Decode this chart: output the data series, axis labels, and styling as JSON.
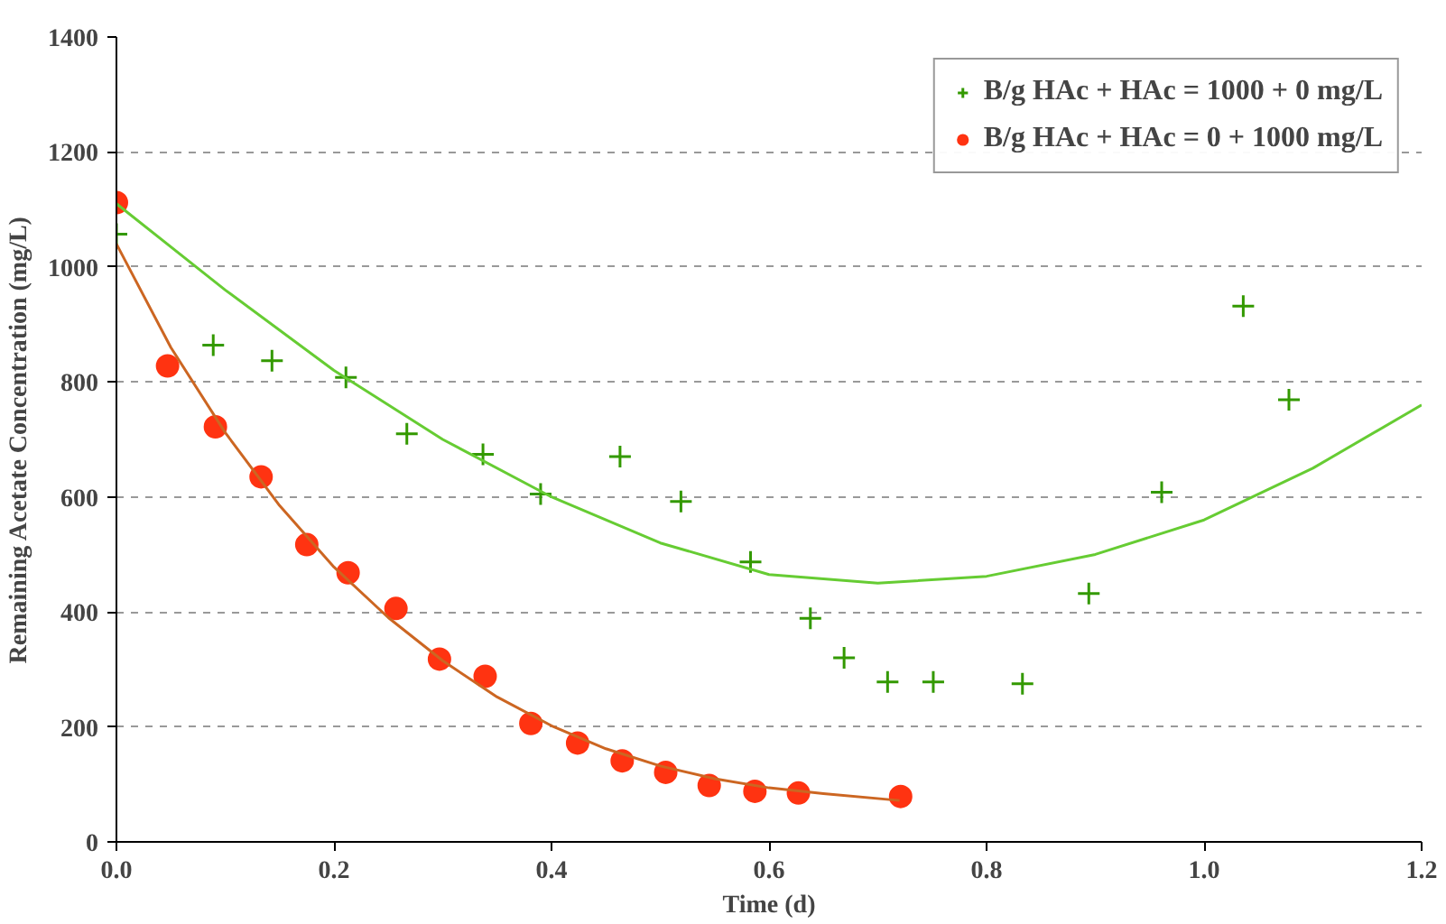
{
  "chart_data": {
    "type": "scatter",
    "xlabel": "Time (d)",
    "ylabel": "Remaining Acetate Concentration (mg/L)",
    "xlim": [
      0,
      1.2
    ],
    "xticks": [
      {
        "value": 0,
        "label": "0.0"
      },
      {
        "value": 0.2,
        "label": "0.2"
      },
      {
        "value": 0.4,
        "label": "0.4"
      },
      {
        "value": 0.6,
        "label": "0.6"
      },
      {
        "value": 0.8,
        "label": "0.8"
      },
      {
        "value": 1.0,
        "label": "1.0"
      },
      {
        "value": 1.2,
        "label": "1.2"
      }
    ],
    "ylim": [
      0,
      1400
    ],
    "yticks": [
      0,
      200,
      400,
      600,
      800,
      1000,
      1200,
      1400
    ],
    "grid": "y",
    "legend": "top right",
    "series": [
      {
        "name": "B/g HAc + HAc = 1000 + 0 mg/L",
        "marker": "cross",
        "color": "#339900",
        "x": [
          0,
          0.089,
          0.143,
          0.211,
          0.267,
          0.337,
          0.39,
          0.463,
          0.519,
          0.583,
          0.638,
          0.669,
          0.709,
          0.751,
          0.833,
          0.894,
          0.961,
          1.036,
          1.078
        ],
        "values": [
          1057,
          864,
          837,
          808,
          710,
          674,
          605,
          670,
          592,
          487,
          389,
          320,
          278,
          278,
          275,
          432,
          608,
          932,
          769
        ]
      },
      {
        "name": "B/g HAc + HAc = 0 + 1000 mg/L",
        "marker": "circle",
        "color": "#ff3311",
        "x": [
          0,
          0.047,
          0.091,
          0.133,
          0.175,
          0.213,
          0.257,
          0.297,
          0.339,
          0.381,
          0.424,
          0.465,
          0.505,
          0.545,
          0.587,
          0.627,
          0.721
        ],
        "values": [
          1112,
          828,
          722,
          635,
          517,
          468,
          406,
          318,
          288,
          206,
          172,
          141,
          121,
          98,
          88,
          85,
          79
        ]
      },
      {
        "type": "line",
        "color": "#66cc33",
        "x": [
          0,
          0.1,
          0.2,
          0.3,
          0.4,
          0.5,
          0.6,
          0.7,
          0.8,
          0.9,
          1.0,
          1.1,
          1.2
        ],
        "values": [
          1110,
          960,
          820,
          700,
          600,
          520,
          465,
          450,
          462,
          500,
          560,
          650,
          760
        ]
      },
      {
        "type": "line",
        "color": "#cc6622",
        "x": [
          0,
          0.05,
          0.1,
          0.15,
          0.2,
          0.25,
          0.3,
          0.35,
          0.4,
          0.45,
          0.5,
          0.55,
          0.6,
          0.65,
          0.72
        ],
        "values": [
          1040,
          860,
          712,
          585,
          478,
          390,
          315,
          252,
          202,
          162,
          132,
          110,
          94,
          84,
          72
        ]
      }
    ]
  }
}
